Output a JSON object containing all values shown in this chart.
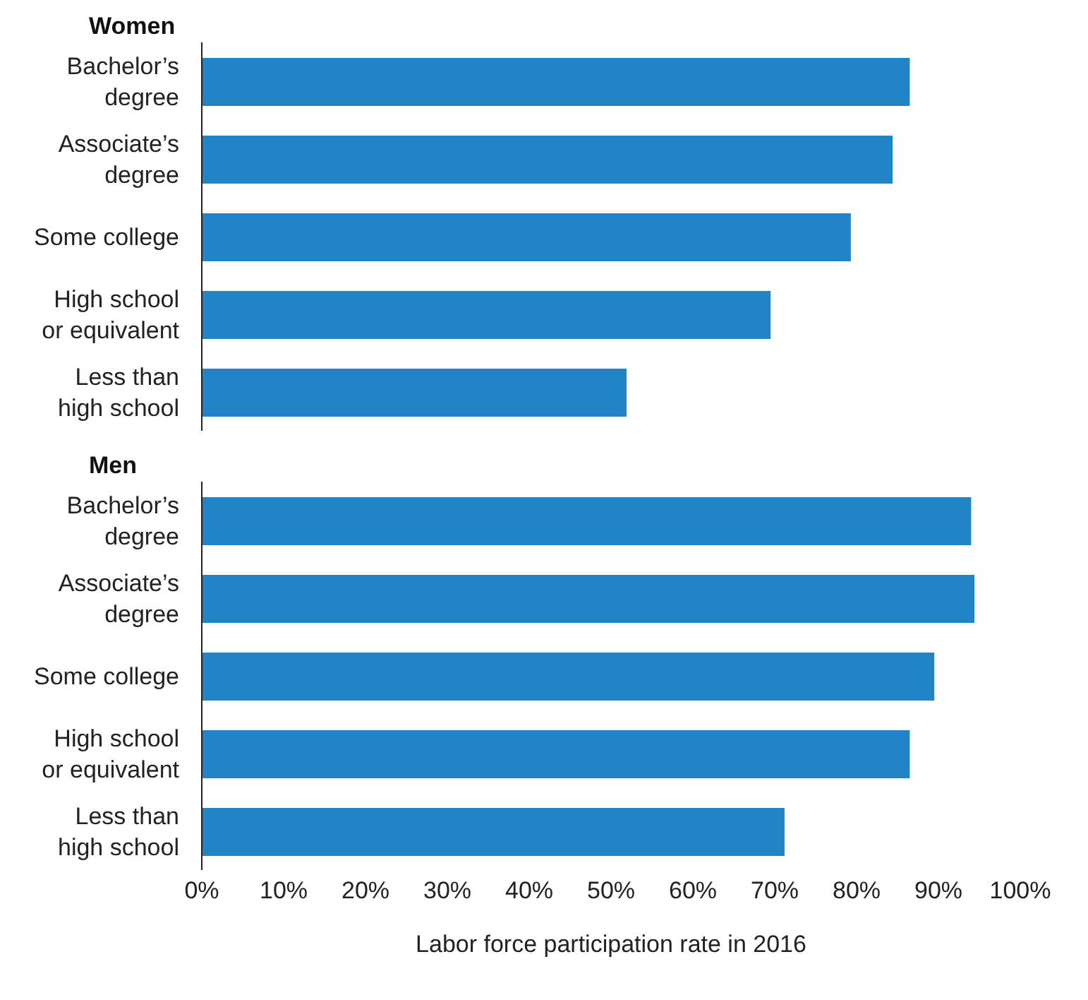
{
  "chart_data": [
    {
      "type": "bar",
      "orientation": "horizontal",
      "title": "Women",
      "categories": [
        "Bachelor’s degree",
        "Associate’s degree",
        "Some college",
        "High school or equivalent",
        "Less than high school"
      ],
      "values": [
        86.5,
        84.4,
        79.3,
        69.5,
        51.9
      ],
      "color": "#2084c6",
      "xlim": [
        0,
        100
      ],
      "tick_labels": "y",
      "grid": false,
      "legend": false
    },
    {
      "type": "bar",
      "orientation": "horizontal",
      "title": "Men",
      "categories": [
        "Bachelor’s degree",
        "Associate’s degree",
        "Some college",
        "High school or equivalent",
        "Less than high school"
      ],
      "values": [
        94.0,
        94.4,
        89.5,
        86.5,
        71.2
      ],
      "color": "#2084c6",
      "xlim": [
        0,
        100
      ],
      "xticks": [
        {
          "value": 0,
          "label": "0%"
        },
        {
          "value": 10,
          "label": "10%"
        },
        {
          "value": 20,
          "label": "20%"
        },
        {
          "value": 30,
          "label": "30%"
        },
        {
          "value": 40,
          "label": "40%"
        },
        {
          "value": 50,
          "label": "50%"
        },
        {
          "value": 60,
          "label": "60%"
        },
        {
          "value": 70,
          "label": "70%"
        },
        {
          "value": 80,
          "label": "80%"
        },
        {
          "value": 90,
          "label": "90%"
        },
        {
          "value": 100,
          "label": "100%"
        }
      ],
      "xlabel": "Labor force participation rate in 2016",
      "grid": false,
      "legend": false
    }
  ]
}
